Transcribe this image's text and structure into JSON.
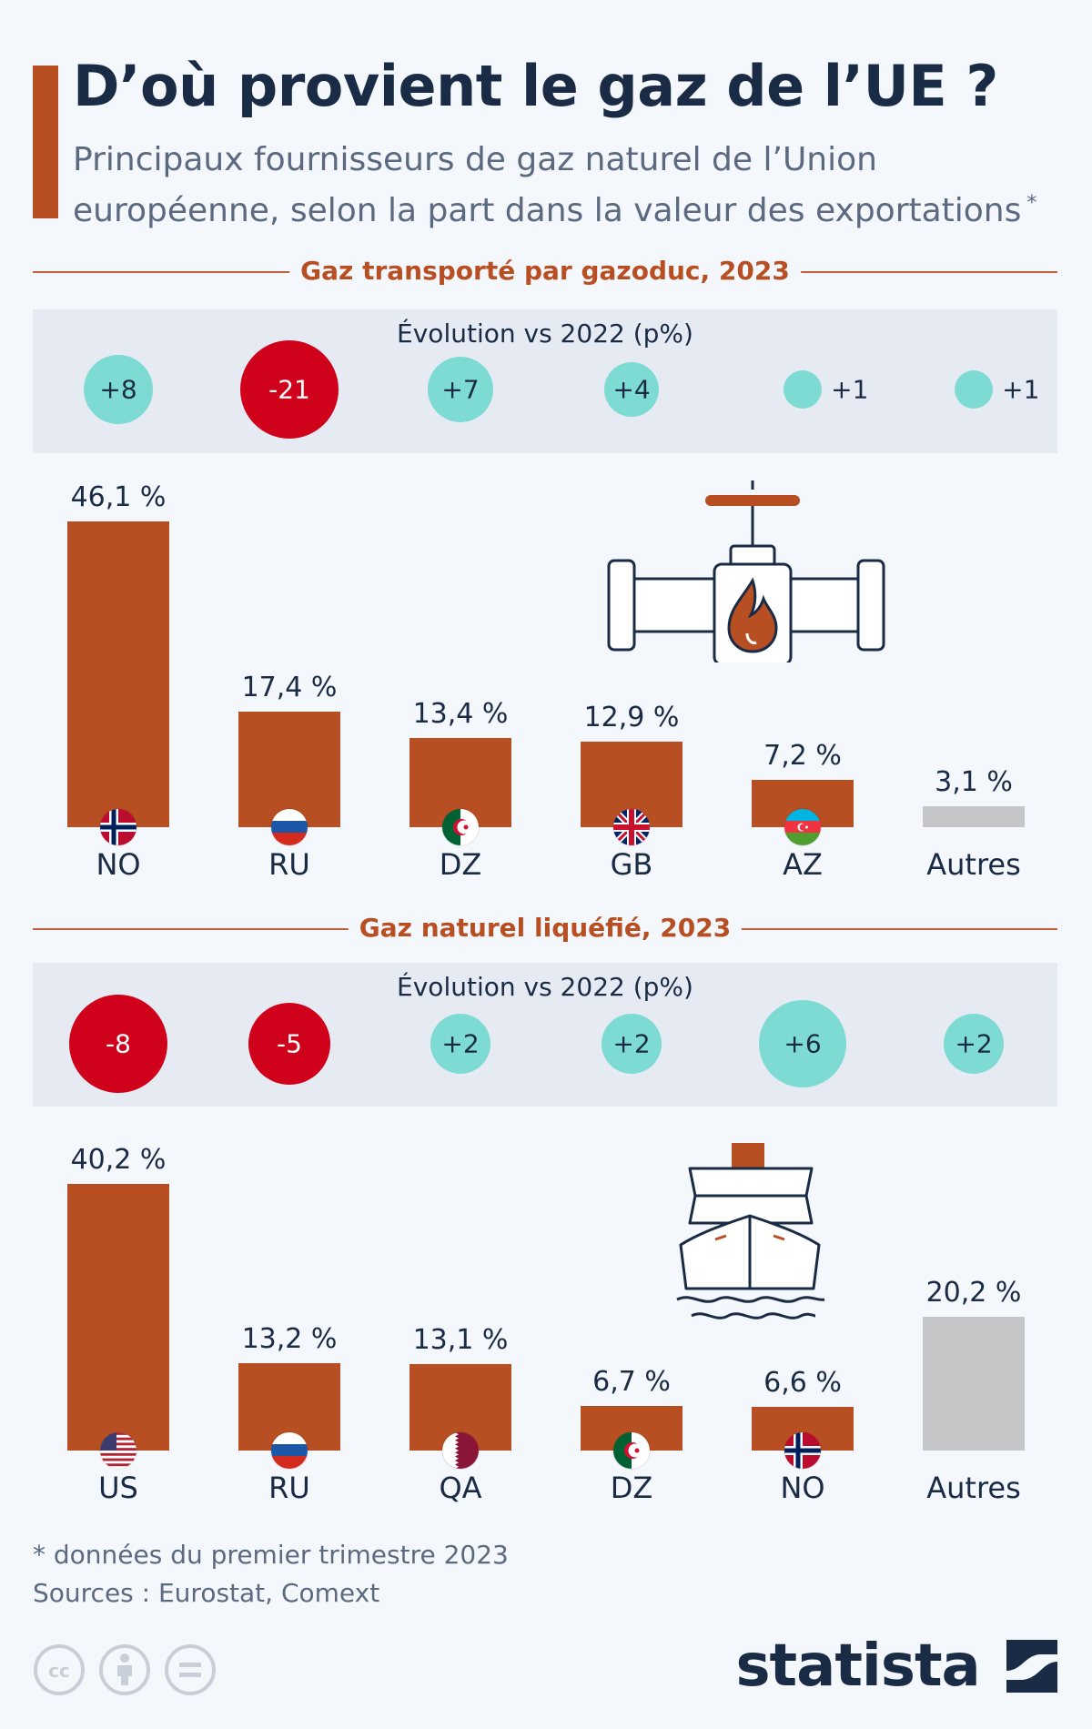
{
  "header": {
    "title": "D’où provient le gaz de l’UE ?",
    "subtitle": "Principaux fournisseurs de gaz naturel de l’Union européenne, selon la part dans la valeur des exportations",
    "footnote_marker": "*"
  },
  "colors": {
    "bar": "#b84f22",
    "other_bar": "#c4c6c8",
    "positive": "#7edbd3",
    "negative": "#d0021b",
    "accent": "#b84f22"
  },
  "chart_data": [
    {
      "type": "bar",
      "section_title": "Gaz transporté par gazoduc, 2023",
      "evolution_title": "Évolution vs 2022 (p%)",
      "categories": [
        "NO",
        "RU",
        "DZ",
        "GB",
        "AZ",
        "Autres"
      ],
      "flags": [
        "norway-flag",
        "russia-flag",
        "algeria-flag",
        "uk-flag",
        "azerbaijan-flag",
        null
      ],
      "values": [
        46.1,
        17.4,
        13.4,
        12.9,
        7.2,
        3.1
      ],
      "value_labels": [
        "46,1 %",
        "17,4 %",
        "13,4 %",
        "12,9 %",
        "7,2 %",
        "3,1 %"
      ],
      "evolution": [
        8,
        -21,
        7,
        4,
        1,
        1
      ],
      "evolution_labels": [
        "+8",
        "-21",
        "+7",
        "+4",
        "+1",
        "+1"
      ],
      "ylim": [
        0,
        50
      ],
      "icon": "pipeline-valve-flame-icon"
    },
    {
      "type": "bar",
      "section_title": "Gaz naturel liquéfié, 2023",
      "evolution_title": "Évolution vs 2022 (p%)",
      "categories": [
        "US",
        "RU",
        "QA",
        "DZ",
        "NO",
        "Autres"
      ],
      "flags": [
        "usa-flag",
        "russia-flag",
        "qatar-flag",
        "algeria-flag",
        "norway-flag",
        null
      ],
      "values": [
        40.2,
        13.2,
        13.1,
        6.7,
        6.6,
        20.2
      ],
      "value_labels": [
        "40,2 %",
        "13,2 %",
        "13,1 %",
        "6,7 %",
        "6,6 %",
        "20,2 %"
      ],
      "evolution": [
        -8,
        -5,
        2,
        2,
        6,
        2
      ],
      "evolution_labels": [
        "-8",
        "-5",
        "+2",
        "+2",
        "+6",
        "+2"
      ],
      "ylim": [
        0,
        50
      ],
      "icon": "lng-tanker-ship-icon"
    }
  ],
  "footer": {
    "footnote": "* données du premier trimestre 2023",
    "sources": "Sources : Eurostat, Comext",
    "license_icons": [
      "cc-icon",
      "attribution-icon",
      "no-derivatives-icon"
    ],
    "brand": "statista"
  }
}
